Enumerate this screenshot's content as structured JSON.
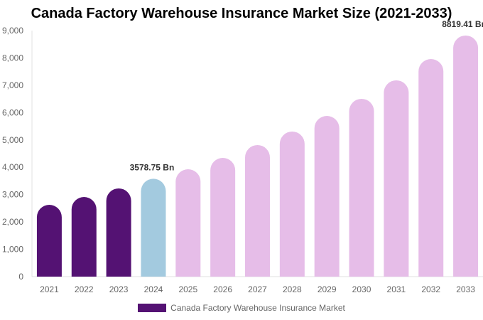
{
  "chart_data": {
    "type": "bar",
    "title": "Canada Factory Warehouse Insurance Market Size (2021-2033)",
    "categories": [
      "2021",
      "2022",
      "2023",
      "2024",
      "2025",
      "2026",
      "2027",
      "2028",
      "2029",
      "2030",
      "2031",
      "2032",
      "2033"
    ],
    "series": [
      {
        "name": "Canada Factory Warehouse Insurance Market",
        "values": [
          2627,
          2914,
          3226,
          3578.75,
          3928,
          4344,
          4813,
          5307,
          5879,
          6504,
          7180,
          7960,
          8819.41
        ]
      }
    ],
    "bar_colors": [
      "#541273",
      "#541273",
      "#541273",
      "#a3cadf",
      "#e6bde8",
      "#e6bde8",
      "#e6bde8",
      "#e6bde8",
      "#e6bde8",
      "#e6bde8",
      "#e6bde8",
      "#e6bde8",
      "#e6bde8"
    ],
    "data_labels": [
      {
        "category": "2024",
        "text": "3578.75 Bn"
      },
      {
        "category": "2033",
        "text": "8819.41 Bn"
      }
    ],
    "ylim": [
      0,
      9000
    ],
    "yticks": [
      "0",
      "1,000",
      "2,000",
      "3,000",
      "4,000",
      "5,000",
      "6,000",
      "7,000",
      "8,000",
      "9,000"
    ],
    "xlabel": "",
    "ylabel": "",
    "grid": false,
    "legend_position": "bottom",
    "legend_color": "#541273"
  }
}
